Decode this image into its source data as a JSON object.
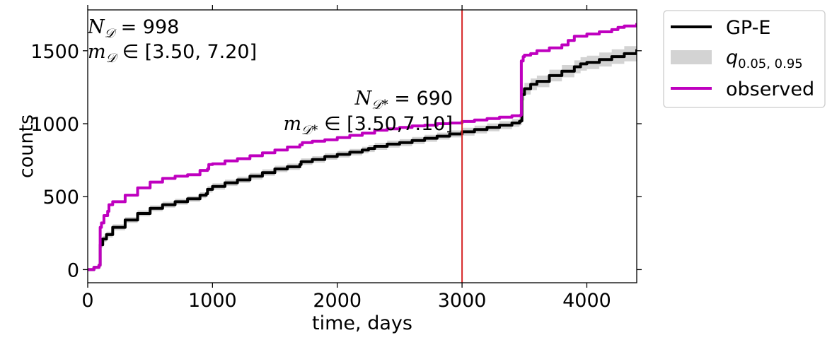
{
  "chart_data": {
    "type": "line",
    "xlabel": "time, days",
    "ylabel": "counts",
    "xlim": [
      0,
      4400
    ],
    "ylim": [
      -90,
      1780
    ],
    "xticks": [
      0,
      1000,
      2000,
      3000,
      4000
    ],
    "yticks": [
      0,
      500,
      1000,
      1500
    ],
    "grid": false,
    "legend_placement": "outside right",
    "vline": {
      "x": 3000,
      "color": "#d62728"
    },
    "series": [
      {
        "name": "GP-E",
        "color": "#000000",
        "x": [
          0,
          50,
          90,
          100,
          120,
          150,
          200,
          300,
          400,
          500,
          600,
          700,
          800,
          900,
          950,
          960,
          1000,
          1100,
          1200,
          1300,
          1400,
          1500,
          1600,
          1700,
          1710,
          1800,
          1900,
          2000,
          2100,
          2200,
          2250,
          2300,
          2400,
          2500,
          2600,
          2700,
          2800,
          2900,
          3000,
          3100,
          3200,
          3300,
          3400,
          3460,
          3470,
          3480,
          3500,
          3550,
          3600,
          3700,
          3800,
          3900,
          3950,
          4000,
          4100,
          4200,
          4300,
          4400
        ],
        "values": [
          0,
          15,
          30,
          170,
          210,
          240,
          290,
          340,
          385,
          420,
          445,
          465,
          485,
          510,
          520,
          550,
          570,
          595,
          615,
          640,
          665,
          690,
          705,
          720,
          740,
          755,
          775,
          790,
          805,
          820,
          830,
          845,
          860,
          870,
          885,
          900,
          915,
          930,
          945,
          960,
          975,
          990,
          1005,
          1015,
          1020,
          1200,
          1240,
          1270,
          1290,
          1330,
          1360,
          1390,
          1410,
          1420,
          1440,
          1460,
          1480,
          1510
        ]
      },
      {
        "name": "q",
        "subscript": "0.05, 0.95",
        "color": "#d3d3d3",
        "x": [
          0,
          50,
          90,
          100,
          120,
          150,
          200,
          300,
          400,
          500,
          600,
          700,
          800,
          900,
          950,
          960,
          1000,
          1100,
          1200,
          1300,
          1400,
          1500,
          1600,
          1700,
          1710,
          1800,
          1900,
          2000,
          2100,
          2200,
          2250,
          2300,
          2400,
          2500,
          2600,
          2700,
          2800,
          2900,
          3000,
          3100,
          3200,
          3300,
          3400,
          3460,
          3470,
          3480,
          3500,
          3550,
          3600,
          3700,
          3800,
          3900,
          3950,
          4000,
          4100,
          4200,
          4300,
          4400
        ],
        "lower": [
          0,
          10,
          22,
          150,
          190,
          220,
          270,
          320,
          365,
          400,
          425,
          445,
          465,
          490,
          498,
          528,
          548,
          573,
          593,
          618,
          643,
          668,
          683,
          698,
          718,
          733,
          753,
          768,
          783,
          798,
          806,
          821,
          836,
          846,
          861,
          876,
          891,
          906,
          918,
          933,
          948,
          963,
          978,
          988,
          992,
          1160,
          1200,
          1230,
          1250,
          1290,
          1318,
          1346,
          1364,
          1374,
          1392,
          1410,
          1428,
          1455
        ],
        "upper": [
          0,
          20,
          38,
          190,
          230,
          260,
          310,
          360,
          405,
          440,
          465,
          485,
          505,
          530,
          542,
          572,
          592,
          617,
          637,
          662,
          687,
          712,
          727,
          742,
          762,
          777,
          797,
          812,
          827,
          842,
          854,
          869,
          884,
          894,
          909,
          924,
          939,
          954,
          972,
          987,
          1002,
          1017,
          1032,
          1042,
          1048,
          1240,
          1280,
          1310,
          1330,
          1370,
          1402,
          1434,
          1456,
          1466,
          1488,
          1510,
          1532,
          1565
        ]
      },
      {
        "name": "observed",
        "color": "#bf00bf",
        "x": [
          0,
          50,
          90,
          100,
          110,
          130,
          160,
          170,
          200,
          300,
          400,
          500,
          600,
          700,
          800,
          900,
          960,
          970,
          1000,
          1100,
          1200,
          1300,
          1400,
          1500,
          1600,
          1700,
          1720,
          1800,
          1900,
          2000,
          2100,
          2200,
          2300,
          2400,
          2500,
          2600,
          2700,
          2800,
          2900,
          3000,
          3100,
          3200,
          3300,
          3400,
          3470,
          3475,
          3490,
          3500,
          3550,
          3600,
          3700,
          3800,
          3850,
          3900,
          4000,
          4100,
          4200,
          4250,
          4300,
          4400
        ],
        "values": [
          0,
          15,
          30,
          290,
          320,
          370,
          400,
          445,
          465,
          510,
          560,
          600,
          625,
          640,
          650,
          680,
          690,
          720,
          725,
          745,
          760,
          780,
          800,
          820,
          840,
          855,
          870,
          880,
          890,
          905,
          920,
          935,
          955,
          965,
          975,
          985,
          990,
          1000,
          1005,
          1015,
          1025,
          1035,
          1045,
          1055,
          1060,
          1430,
          1460,
          1470,
          1480,
          1500,
          1520,
          1540,
          1570,
          1600,
          1615,
          1630,
          1645,
          1660,
          1670,
          1690
        ]
      }
    ],
    "annotations": {
      "top_left_line1": {
        "lhs": "N",
        "sub": "𝒟",
        "rest": " =  998"
      },
      "top_left_line2": {
        "lhs": "m",
        "sub": "𝒟",
        "rest": " ∈ [3.50, 7.20]"
      },
      "center_line1": {
        "lhs": "N",
        "sub": "𝒟*",
        "rest": " =  690"
      },
      "center_line2": {
        "lhs": "m",
        "sub": "𝒟*",
        "rest": " ∈ [3.50,7.10]"
      }
    }
  }
}
